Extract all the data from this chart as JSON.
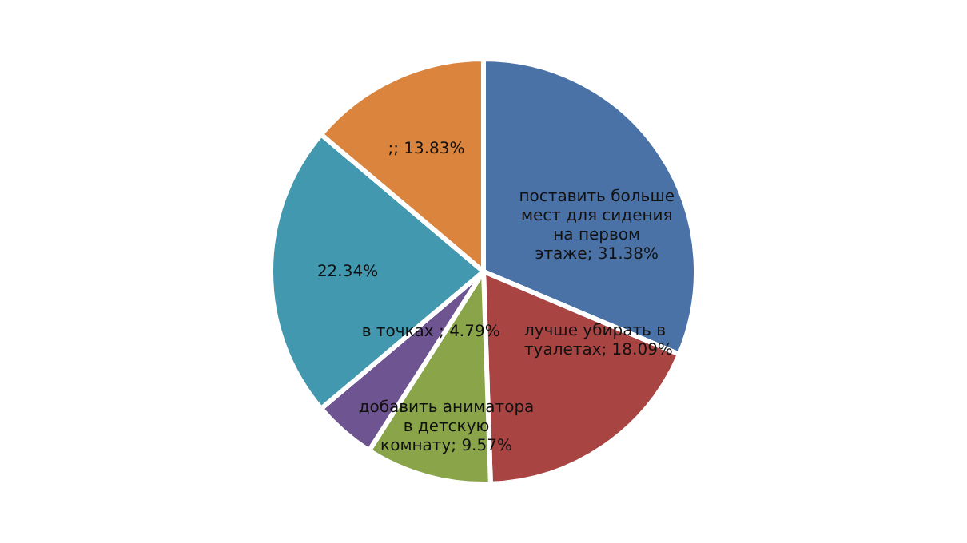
{
  "chart_data": {
    "type": "pie",
    "categories": [
      "поставить больше мест для сидения на первом этаже",
      "лучше убирать в туалетах",
      "добавить аниматора в детскую комнату",
      "в точках ",
      null,
      null
    ],
    "values": [
      31.38,
      18.09,
      9.57,
      4.79,
      22.34,
      13.83
    ],
    "value_labels": [
      "31.38%",
      "18.09%",
      "9.57%",
      "4.79%",
      "22.34%",
      ";; 13.83%"
    ],
    "colors": [
      "#4a72a6",
      "#a84442",
      "#8aa44a",
      "#6e5490",
      "#4298ae",
      "#db843d"
    ]
  }
}
